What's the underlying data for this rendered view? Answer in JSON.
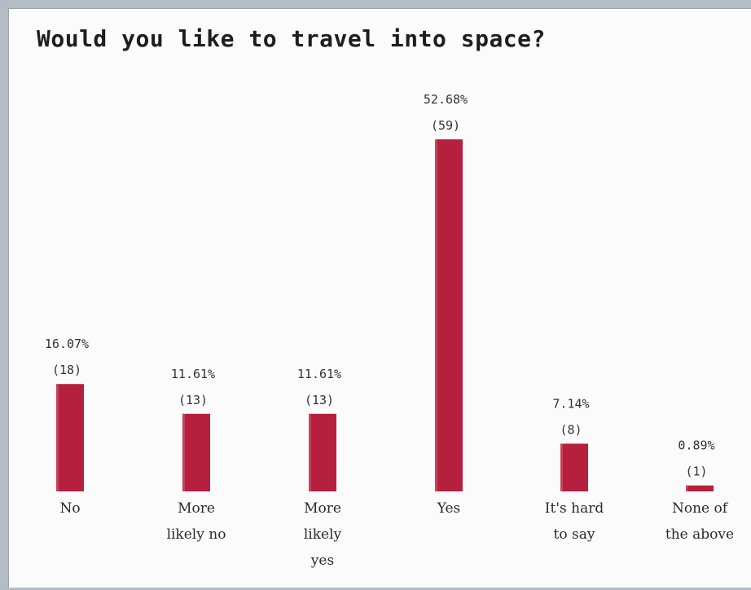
{
  "chart_data": {
    "type": "bar",
    "title": "Would you like to travel into space?",
    "categories": [
      [
        "No"
      ],
      [
        "More",
        "likely no"
      ],
      [
        "More",
        "likely",
        "yes"
      ],
      [
        "Yes"
      ],
      [
        "It's hard",
        "to say"
      ],
      [
        "None of",
        "the above"
      ]
    ],
    "percent_labels": [
      "16.07%",
      "11.61%",
      "11.61%",
      "52.68%",
      "7.14%",
      "0.89%"
    ],
    "count_labels": [
      "(18)",
      "(13)",
      "(13)",
      "(59)",
      "(8)",
      "(1)"
    ],
    "values": [
      16.07,
      11.61,
      11.61,
      52.68,
      7.14,
      0.89
    ],
    "counts": [
      18,
      13,
      13,
      59,
      8,
      1
    ],
    "bar_color": "#b5203f",
    "grid": false
  }
}
